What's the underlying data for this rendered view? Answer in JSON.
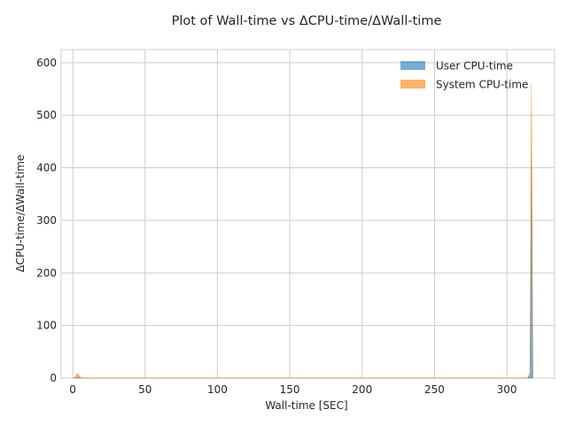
{
  "chart_data": {
    "type": "area",
    "title": "Plot of Wall-time vs ΔCPU-time/ΔWall-time",
    "xlabel": "Wall-time [SEC]",
    "ylabel": "ΔCPU-time/ΔWall-time",
    "xlim": [
      -8,
      333
    ],
    "ylim": [
      0,
      625
    ],
    "xticks": [
      0,
      50,
      100,
      150,
      200,
      250,
      300
    ],
    "yticks": [
      0,
      100,
      200,
      300,
      400,
      500,
      600
    ],
    "grid": true,
    "legend_position": "top-right",
    "stacked": true,
    "series": [
      {
        "name": "User CPU-time",
        "color": "#1f77b4",
        "x": [
          0,
          2,
          3,
          4,
          5,
          6,
          10,
          20,
          50,
          100,
          150,
          200,
          250,
          300,
          314,
          315,
          316,
          317,
          318
        ],
        "values": [
          0,
          0.5,
          1,
          1.5,
          0.5,
          0.2,
          0.1,
          0.1,
          0.1,
          0.1,
          0.1,
          0.1,
          0.1,
          0.1,
          0.1,
          2,
          8,
          440,
          0
        ]
      },
      {
        "name": "System CPU-time",
        "color": "#ff7f0e",
        "x": [
          0,
          2,
          3,
          4,
          5,
          6,
          10,
          20,
          50,
          100,
          150,
          200,
          250,
          300,
          314,
          315,
          316,
          317,
          318
        ],
        "values": [
          0,
          2,
          8,
          5,
          2,
          0.5,
          0.2,
          0.2,
          0.2,
          0.2,
          0.2,
          0.2,
          0.2,
          0.2,
          0.2,
          1,
          3,
          120,
          0
        ]
      }
    ]
  }
}
